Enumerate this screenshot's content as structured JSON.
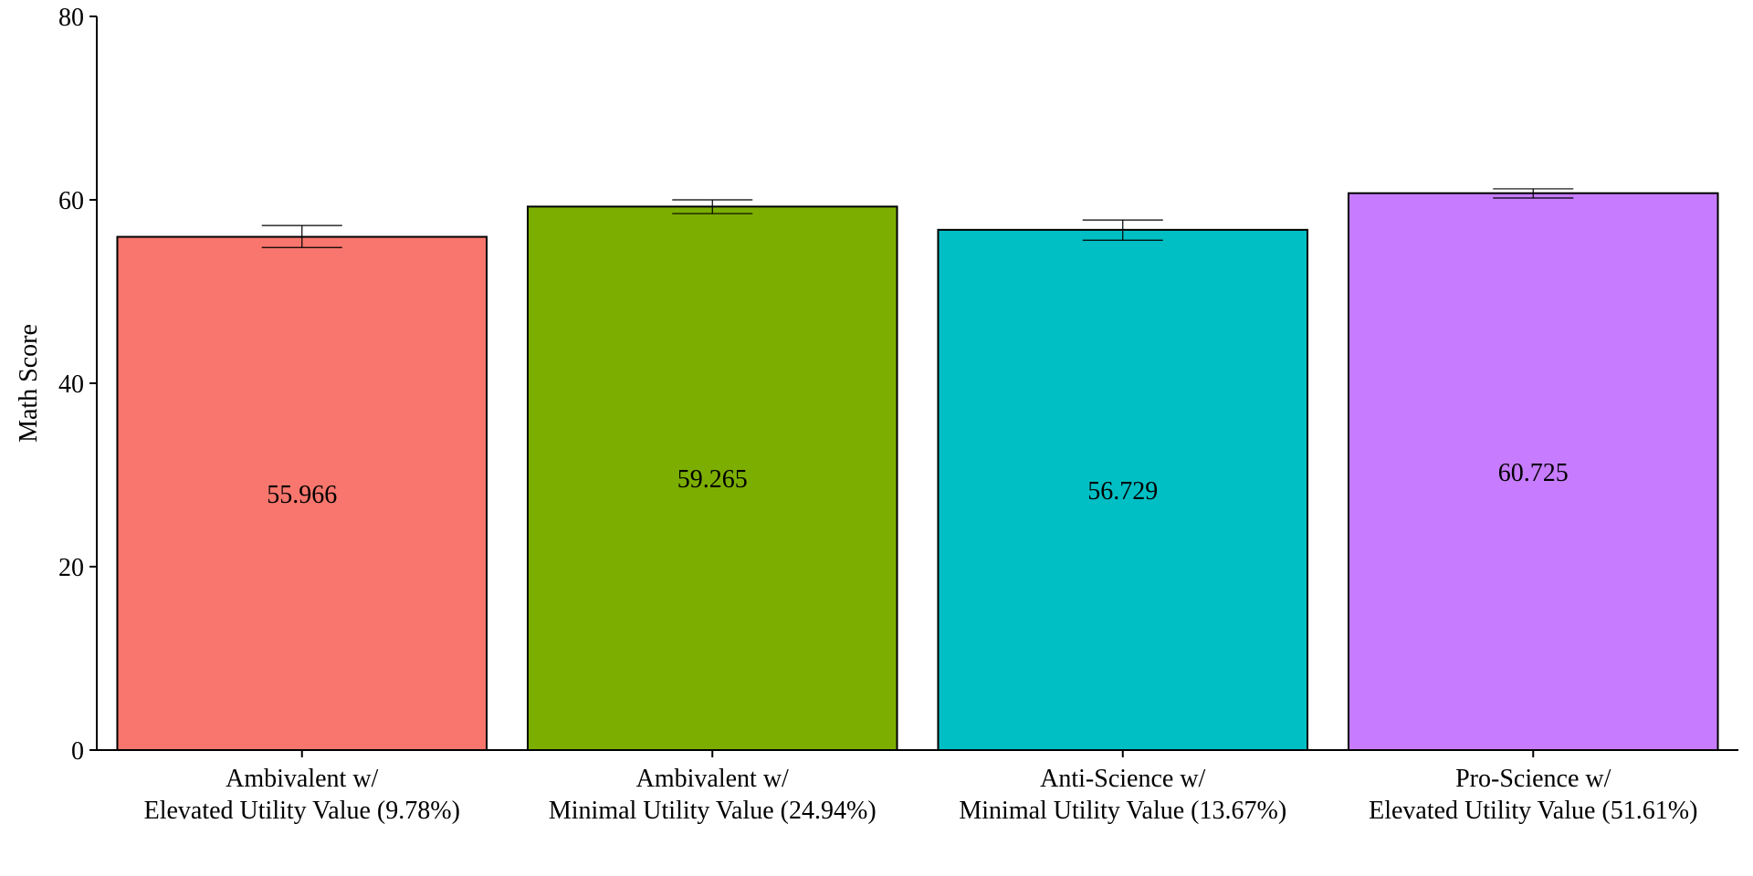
{
  "chart_data": {
    "type": "bar",
    "title": "",
    "xlabel": "",
    "ylabel": "Math Score",
    "ylim": [
      0,
      80
    ],
    "yticks": [
      0,
      20,
      40,
      60,
      80
    ],
    "grid": false,
    "legend": "none",
    "categories": [
      [
        "Ambivalent w/",
        "Elevated Utility Value (9.78%)"
      ],
      [
        "Ambivalent w/",
        "Minimal Utility Value (24.94%)"
      ],
      [
        "Anti-Science w/",
        "Minimal Utility Value (13.67%)"
      ],
      [
        "Pro-Science w/",
        "Elevated Utility Value (51.61%)"
      ]
    ],
    "values": [
      55.966,
      59.265,
      56.729,
      60.725
    ],
    "value_labels": [
      "55.966",
      "59.265",
      "56.729",
      "60.725"
    ],
    "error_low": [
      54.8,
      58.5,
      55.6,
      60.2
    ],
    "error_high": [
      57.2,
      60.0,
      57.8,
      61.2
    ],
    "colors": [
      "#F8766D",
      "#7CAE00",
      "#00BFC4",
      "#C77CFF"
    ]
  }
}
